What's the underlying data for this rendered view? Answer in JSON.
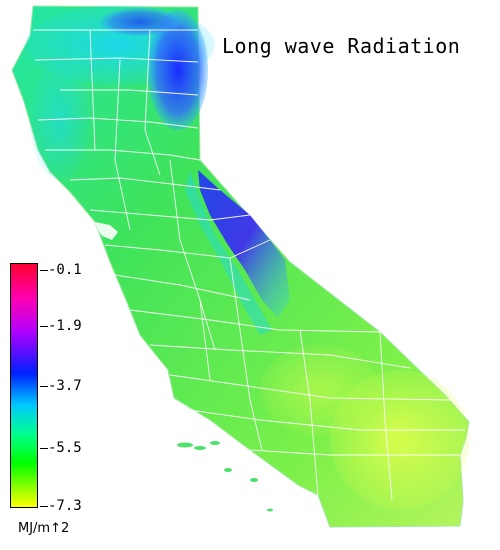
{
  "map": {
    "title": "Long wave Radiation",
    "region": "California",
    "legend": {
      "values": [
        "-0.1",
        "-1.9",
        "-3.7",
        "-5.5",
        "-7.3"
      ],
      "units": "MJ/m↑2",
      "colors": {
        "max": "#ff0033",
        "mid_high": "#cc00ff",
        "mid": "#0000ff",
        "mid_low": "#00ffff",
        "low": "#00ff00",
        "min": "#ffff00"
      }
    }
  }
}
